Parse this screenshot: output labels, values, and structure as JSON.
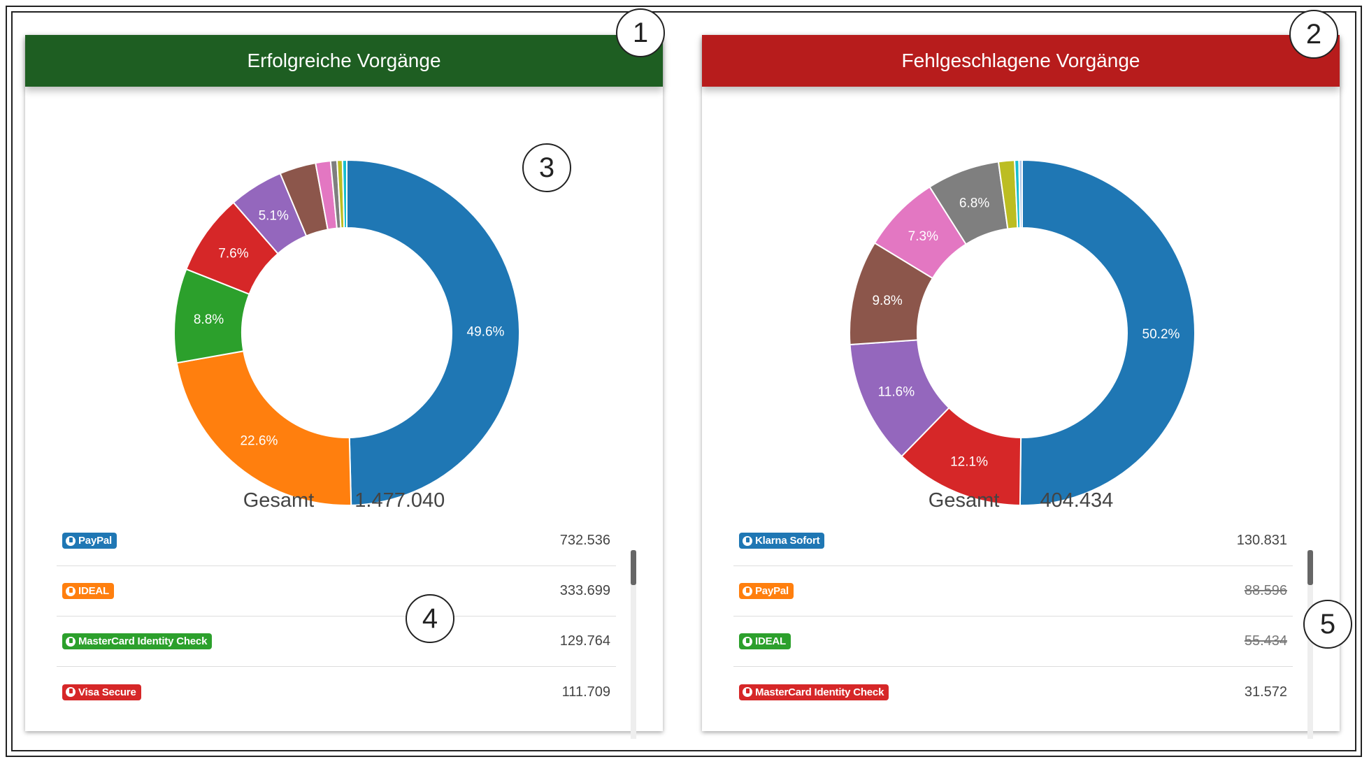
{
  "panels": {
    "success": {
      "title": "Erfolgreiche Vorgänge",
      "header_color": "#1e5e22",
      "total_label": "Gesamt",
      "total_value": "1.477.040",
      "rows": [
        {
          "label": "PayPal",
          "color": "#1f77b4",
          "value": "732.536",
          "struck": false
        },
        {
          "label": "IDEAL",
          "color": "#ff7f0e",
          "value": "333.699",
          "struck": false
        },
        {
          "label": "MasterCard Identity Check",
          "color": "#2ca02c",
          "value": "129.764",
          "struck": false
        },
        {
          "label": "Visa Secure",
          "color": "#d62728",
          "value": "111.709",
          "struck": false
        }
      ]
    },
    "failed": {
      "title": "Fehlgeschlagene Vorgänge",
      "header_color": "#b71c1c",
      "total_label": "Gesamt",
      "total_value": "404.434",
      "rows": [
        {
          "label": "Klarna Sofort",
          "color": "#1f77b4",
          "value": "130.831",
          "struck": false
        },
        {
          "label": "PayPal",
          "color": "#ff7f0e",
          "value": "88.596",
          "struck": true
        },
        {
          "label": "IDEAL",
          "color": "#2ca02c",
          "value": "55.434",
          "struck": true
        },
        {
          "label": "MasterCard Identity Check",
          "color": "#d62728",
          "value": "31.572",
          "struck": false
        }
      ]
    }
  },
  "callouts": [
    "1",
    "2",
    "3",
    "4",
    "5"
  ],
  "chart_data": [
    {
      "type": "pie",
      "donut": true,
      "series": [
        {
          "value": 49.6,
          "color": "#1f77b4",
          "label": "49.6%"
        },
        {
          "value": 22.6,
          "color": "#ff7f0e",
          "label": "22.6%"
        },
        {
          "value": 8.8,
          "color": "#2ca02c",
          "label": "8.8%"
        },
        {
          "value": 7.6,
          "color": "#d62728",
          "label": "7.6%"
        },
        {
          "value": 5.1,
          "color": "#9467bd",
          "label": "5.1%"
        },
        {
          "value": 3.4,
          "color": "#8c564b",
          "label": ""
        },
        {
          "value": 1.4,
          "color": "#e377c2",
          "label": ""
        },
        {
          "value": 0.6,
          "color": "#7f7f7f",
          "label": ""
        },
        {
          "value": 0.5,
          "color": "#bcbd22",
          "label": ""
        },
        {
          "value": 0.4,
          "color": "#17becf",
          "label": ""
        }
      ]
    },
    {
      "type": "pie",
      "donut": true,
      "series": [
        {
          "value": 50.2,
          "color": "#1f77b4",
          "label": "50.2%"
        },
        {
          "value": 12.1,
          "color": "#d62728",
          "label": "12.1%"
        },
        {
          "value": 11.6,
          "color": "#9467bd",
          "label": "11.6%"
        },
        {
          "value": 9.8,
          "color": "#8c564b",
          "label": "9.8%"
        },
        {
          "value": 7.3,
          "color": "#e377c2",
          "label": "7.3%"
        },
        {
          "value": 6.8,
          "color": "#7f7f7f",
          "label": "6.8%"
        },
        {
          "value": 1.5,
          "color": "#bcbd22",
          "label": ""
        },
        {
          "value": 0.4,
          "color": "#17becf",
          "label": ""
        },
        {
          "value": 0.3,
          "color": "#aec7e8",
          "label": ""
        }
      ]
    }
  ]
}
